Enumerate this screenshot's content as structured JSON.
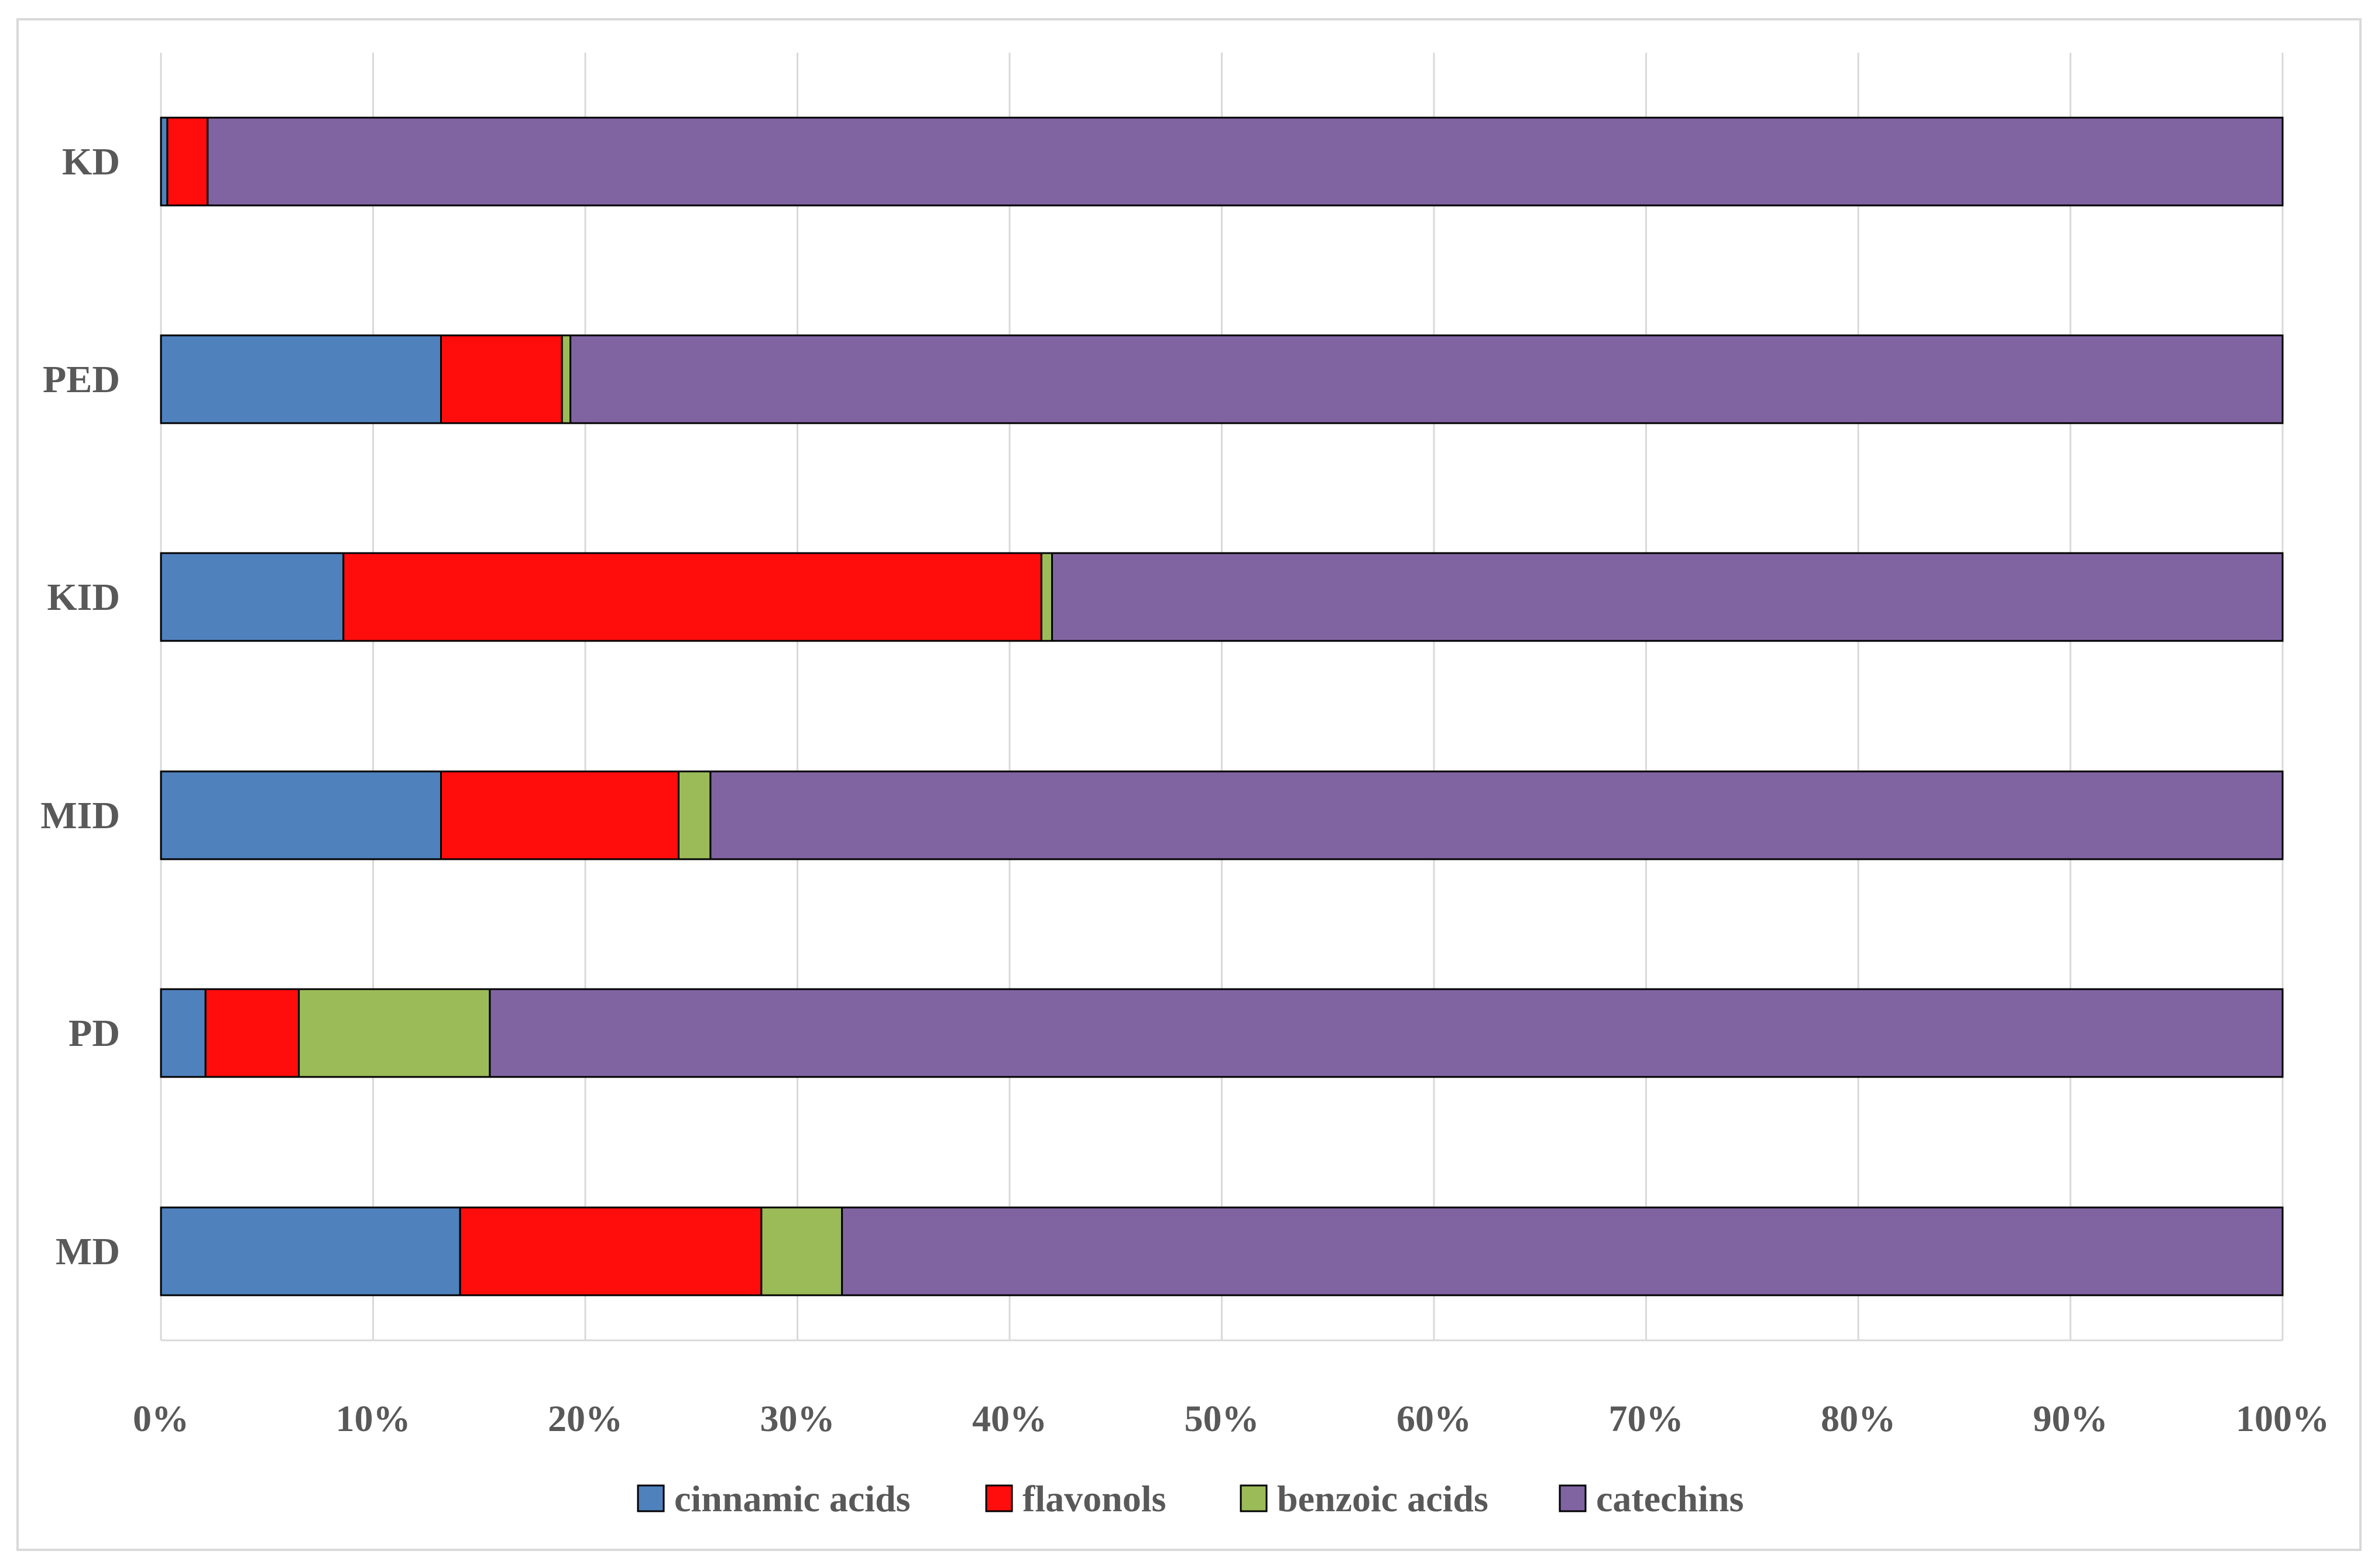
{
  "chart_data": {
    "type": "bar",
    "orientation": "horizontal",
    "stacked": "percent",
    "categories": [
      "KD",
      "PED",
      "KID",
      "MID",
      "PD",
      "MD"
    ],
    "series": [
      {
        "name": "cinnamic acids",
        "color": "#4F81BD",
        "values": [
          0.3,
          13.2,
          8.6,
          13.2,
          2.1,
          14.1
        ]
      },
      {
        "name": "flavonols",
        "color": "#FF0D0D",
        "values": [
          1.9,
          5.7,
          32.9,
          11.2,
          4.4,
          14.2
        ]
      },
      {
        "name": "benzoic acids",
        "color": "#9BBB59",
        "values": [
          0.0,
          0.4,
          0.5,
          1.5,
          9.0,
          3.8
        ]
      },
      {
        "name": "catechins",
        "color": "#8064A2",
        "values": [
          97.8,
          80.7,
          58.0,
          74.1,
          84.5,
          67.9
        ]
      }
    ],
    "xlim": [
      0,
      100
    ],
    "xticks": [
      "0%",
      "10%",
      "20%",
      "30%",
      "40%",
      "50%",
      "60%",
      "70%",
      "80%",
      "90%",
      "100%"
    ],
    "grid": true,
    "legend_position": "bottom",
    "title": "",
    "xlabel": "",
    "ylabel": ""
  }
}
